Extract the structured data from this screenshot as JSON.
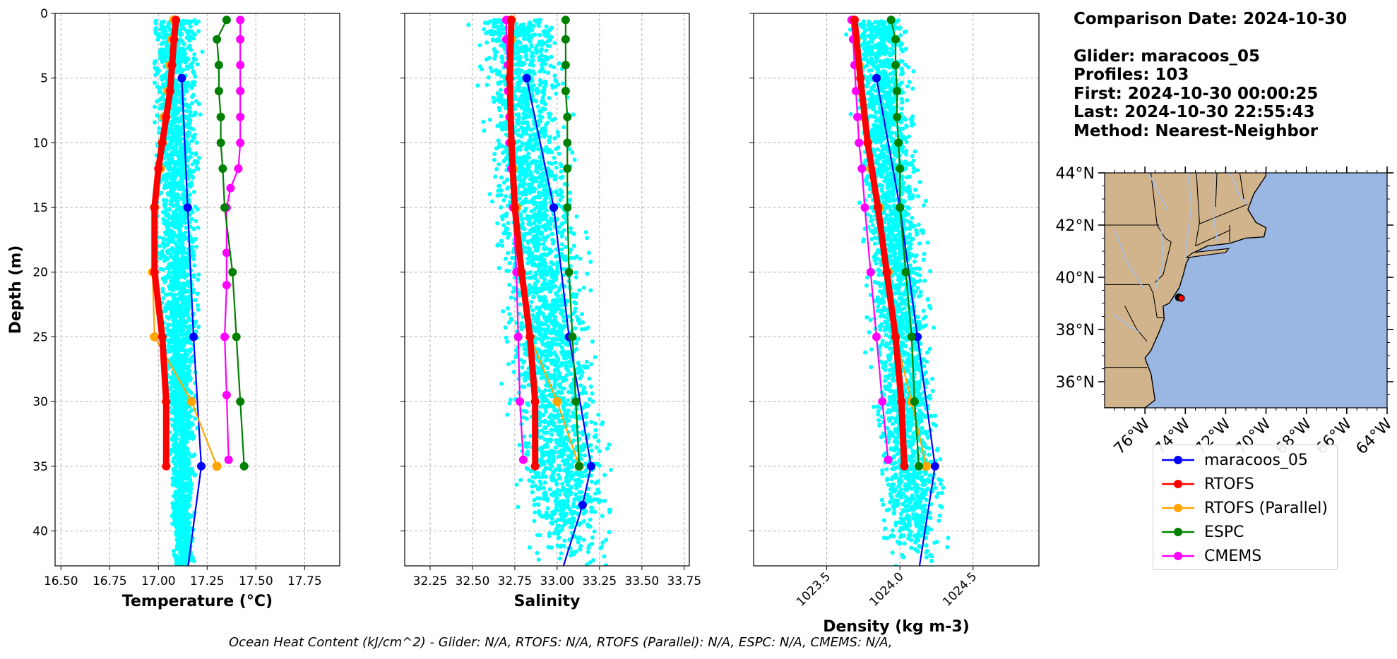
{
  "info": {
    "comparison_date": "Comparison Date: 2024-10-30",
    "glider": "Glider: maracoos_05",
    "profiles": "Profiles: 103",
    "first": "First: 2024-10-30 00:00:25",
    "last": "Last: 2024-10-30 22:55:43",
    "method": "Method: Nearest-Neighbor"
  },
  "footer": "Ocean Heat Content (kJ/cm^2) - Glider: N/A,  RTOFS: N/A,  RTOFS (Parallel): N/A,  ESPC: N/A,  CMEMS: N/A,",
  "colors": {
    "maracoos_05": "#0000ff",
    "RTOFS": "#ff0000",
    "RTOFS (Parallel)": "#ffa500",
    "ESPC": "#008000",
    "CMEMS": "#ff00ff",
    "glider_scatter": "#00ffff",
    "land": "#d2b48c",
    "ocean": "#9ab6e2",
    "rivers": "#a9bfe0"
  },
  "legend": [
    "maracoos_05",
    "RTOFS",
    "RTOFS (Parallel)",
    "ESPC",
    "CMEMS"
  ],
  "chart_data": [
    {
      "type": "line",
      "xlabel": "Temperature (°C)",
      "ylabel": "Depth (m)",
      "xlim": [
        16.47,
        17.93
      ],
      "ylim": [
        42.7,
        0
      ],
      "xticks": [
        "16.50",
        "16.75",
        "17.00",
        "17.25",
        "17.50",
        "17.75"
      ],
      "yticks": [
        0,
        5,
        10,
        15,
        20,
        25,
        30,
        35,
        40
      ],
      "grid": true,
      "scatter": {
        "name": "glider profiles",
        "depth_range": [
          0.5,
          43
        ],
        "x_center_top": 17.08,
        "x_center_bottom": 17.13,
        "x_width_top": 0.3,
        "x_width_bottom": 0.12,
        "x_min": 16.98,
        "x_max": 17.49
      },
      "series": [
        {
          "name": "maracoos_05",
          "depth": [
            5,
            15,
            25,
            35,
            43
          ],
          "values": [
            17.12,
            17.15,
            17.18,
            17.22,
            17.15
          ]
        },
        {
          "name": "RTOFS",
          "depth": [
            0.5,
            2,
            4,
            6,
            8,
            10,
            12,
            15,
            20,
            25,
            30,
            35
          ],
          "values": [
            17.09,
            17.08,
            17.07,
            17.06,
            17.04,
            17.02,
            17.0,
            16.98,
            16.98,
            17.02,
            17.04,
            17.04
          ]
        },
        {
          "name": "RTOFS (Parallel)",
          "depth": [
            0.5,
            2,
            4,
            6,
            8,
            10,
            12,
            15,
            20,
            25,
            30,
            35
          ],
          "values": [
            17.08,
            17.07,
            17.06,
            17.05,
            17.03,
            17.02,
            17.01,
            16.98,
            16.97,
            16.98,
            17.17,
            17.3
          ]
        },
        {
          "name": "ESPC",
          "depth": [
            0.5,
            2,
            4,
            6,
            8,
            10,
            12,
            15,
            20,
            25,
            30,
            35
          ],
          "values": [
            17.35,
            17.3,
            17.31,
            17.31,
            17.32,
            17.32,
            17.33,
            17.34,
            17.38,
            17.4,
            17.42,
            17.44
          ]
        },
        {
          "name": "CMEMS",
          "depth": [
            0.5,
            2,
            4,
            6,
            8,
            10,
            12,
            13.5,
            15,
            18.5,
            21,
            25,
            29.5,
            34.5
          ],
          "values": [
            17.42,
            17.42,
            17.42,
            17.42,
            17.42,
            17.42,
            17.41,
            17.37,
            17.35,
            17.35,
            17.35,
            17.34,
            17.35,
            17.36
          ]
        }
      ]
    },
    {
      "type": "line",
      "xlabel": "Salinity",
      "xlim": [
        32.1,
        33.78
      ],
      "ylim": [
        42.7,
        0
      ],
      "xticks": [
        "32.25",
        "32.50",
        "32.75",
        "33.00",
        "33.25",
        "33.50",
        "33.75"
      ],
      "yticks": [
        0,
        5,
        10,
        15,
        20,
        25,
        30,
        35,
        40
      ],
      "grid": true,
      "scatter": {
        "name": "glider profiles",
        "depth_range": [
          0.5,
          43
        ],
        "x_center_top": 32.75,
        "x_center_bottom": 33.1,
        "x_width_top": 0.55,
        "x_width_bottom": 0.65,
        "x_min": 32.35,
        "x_max": 33.5
      },
      "series": [
        {
          "name": "maracoos_05",
          "depth": [
            5,
            15,
            25,
            35,
            38,
            43
          ],
          "values": [
            32.82,
            32.98,
            33.07,
            33.2,
            33.15,
            33.03
          ]
        },
        {
          "name": "RTOFS",
          "depth": [
            0.5,
            5,
            10,
            15,
            20,
            25,
            30,
            35
          ],
          "values": [
            32.73,
            32.72,
            32.73,
            32.75,
            32.79,
            32.84,
            32.87,
            32.87
          ]
        },
        {
          "name": "RTOFS (Parallel)",
          "depth": [
            0.5,
            2,
            4,
            6,
            8,
            10,
            12,
            15,
            20,
            25,
            30,
            35
          ],
          "values": [
            32.73,
            32.73,
            32.72,
            32.72,
            32.72,
            32.73,
            32.74,
            32.76,
            32.78,
            32.84,
            33.0,
            33.13
          ]
        },
        {
          "name": "ESPC",
          "depth": [
            0.5,
            2,
            4,
            6,
            8,
            10,
            12,
            15,
            20,
            25,
            30,
            35
          ],
          "values": [
            33.05,
            33.05,
            33.05,
            33.05,
            33.06,
            33.06,
            33.06,
            33.06,
            33.07,
            33.09,
            33.11,
            33.13
          ]
        },
        {
          "name": "CMEMS",
          "depth": [
            0.5,
            2,
            4,
            6,
            8,
            10,
            12,
            15,
            20,
            25,
            30,
            34.5
          ],
          "values": [
            32.7,
            32.7,
            32.71,
            32.71,
            32.72,
            32.72,
            32.73,
            32.74,
            32.76,
            32.77,
            32.78,
            32.8
          ]
        }
      ]
    },
    {
      "type": "line",
      "xlabel": "Density (kg m-3)",
      "xlim": [
        1023.0,
        1024.95
      ],
      "ylim": [
        42.7,
        0
      ],
      "xticks": [
        "1023.5",
        "1024.0",
        "1024.5"
      ],
      "yticks": [
        0,
        5,
        10,
        15,
        20,
        25,
        30,
        35,
        40
      ],
      "grid": true,
      "scatter": {
        "name": "glider profiles",
        "depth_range": [
          0.5,
          43
        ],
        "x_center_top": 1023.85,
        "x_center_bottom": 1024.12,
        "x_width_top": 0.45,
        "x_width_bottom": 0.5,
        "x_min": 1023.5,
        "x_max": 1024.45
      },
      "series": [
        {
          "name": "maracoos_05",
          "depth": [
            5,
            15,
            25,
            35,
            43
          ],
          "values": [
            1023.84,
            1024.0,
            1024.12,
            1024.24,
            1024.13
          ]
        },
        {
          "name": "RTOFS",
          "depth": [
            0.5,
            5,
            10,
            15,
            20,
            25,
            30,
            35
          ],
          "values": [
            1023.69,
            1023.73,
            1023.78,
            1023.85,
            1023.91,
            1023.97,
            1024.01,
            1024.03
          ]
        },
        {
          "name": "RTOFS (Parallel)",
          "depth": [
            0.5,
            2,
            4,
            6,
            8,
            10,
            12,
            15,
            20,
            25,
            30,
            35
          ],
          "values": [
            1023.68,
            1023.7,
            1023.72,
            1023.73,
            1023.75,
            1023.78,
            1023.8,
            1023.86,
            1023.92,
            1023.97,
            1024.08,
            1024.18
          ]
        },
        {
          "name": "ESPC",
          "depth": [
            0.5,
            2,
            4,
            6,
            8,
            10,
            12,
            15,
            20,
            25,
            30,
            35
          ],
          "values": [
            1023.94,
            1023.97,
            1023.97,
            1023.98,
            1023.98,
            1023.99,
            1024.0,
            1024.0,
            1024.04,
            1024.08,
            1024.1,
            1024.13
          ]
        },
        {
          "name": "CMEMS",
          "depth": [
            0.5,
            2,
            4,
            6,
            8,
            10,
            12,
            15,
            20,
            25,
            30,
            34.5
          ],
          "values": [
            1023.67,
            1023.68,
            1023.69,
            1023.7,
            1023.71,
            1023.72,
            1023.74,
            1023.76,
            1023.8,
            1023.84,
            1023.88,
            1023.92
          ]
        }
      ]
    },
    {
      "type": "map",
      "lon_range": [
        -78,
        -64
      ],
      "lat_range": [
        35,
        44
      ],
      "xticks": [
        "76°W",
        "74°W",
        "72°W",
        "70°W",
        "68°W",
        "66°W",
        "64°W"
      ],
      "yticks": [
        "36°N",
        "38°N",
        "40°N",
        "42°N",
        "44°N"
      ],
      "glider_position": {
        "lon": -74.2,
        "lat": 39.2
      }
    }
  ]
}
